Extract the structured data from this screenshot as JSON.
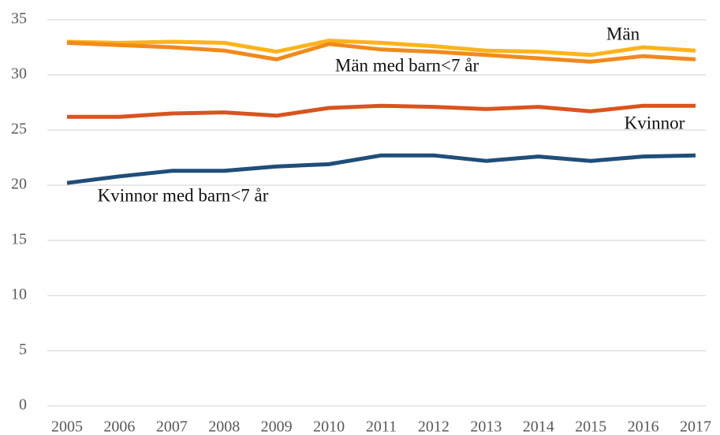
{
  "chart_data": {
    "type": "line",
    "x": [
      2005,
      2006,
      2007,
      2008,
      2009,
      2010,
      2011,
      2012,
      2013,
      2014,
      2015,
      2016,
      2017
    ],
    "series": [
      {
        "name": "Män",
        "color": "#ffb31a",
        "values": [
          33.0,
          32.9,
          33.0,
          32.9,
          32.1,
          33.1,
          32.9,
          32.6,
          32.2,
          32.1,
          31.8,
          32.5,
          32.2
        ]
      },
      {
        "name": "Män med barn<7 år",
        "color": "#f08a1c",
        "values": [
          32.9,
          32.7,
          32.5,
          32.2,
          31.4,
          32.8,
          32.3,
          32.1,
          31.8,
          31.5,
          31.2,
          31.7,
          31.4
        ]
      },
      {
        "name": "Kvinnor",
        "color": "#d9541e",
        "values": [
          26.2,
          26.2,
          26.5,
          26.6,
          26.3,
          27.0,
          27.2,
          27.1,
          26.9,
          27.1,
          26.7,
          27.2,
          27.2
        ]
      },
      {
        "name": "Kvinnor med barn<7 år",
        "color": "#1f4e79",
        "values": [
          20.2,
          20.8,
          21.3,
          21.3,
          21.7,
          21.9,
          22.7,
          22.7,
          22.2,
          22.6,
          22.2,
          22.6,
          22.7
        ]
      }
    ],
    "xlim": [
      2005,
      2017
    ],
    "ylim": [
      0,
      35
    ],
    "yticks": [
      0,
      5,
      10,
      15,
      20,
      25,
      30,
      35
    ],
    "grid": true
  }
}
